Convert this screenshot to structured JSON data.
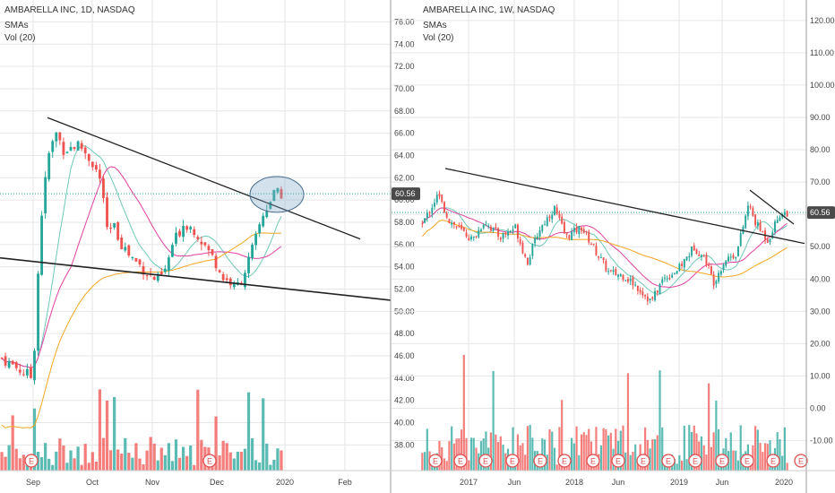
{
  "chart_data": [
    {
      "type": "candlestick",
      "title": "AMBARELLA INC, 1D, NASDAQ",
      "indicators": [
        "SMAs",
        "Vol (20)"
      ],
      "y_ticks": [
        "76.00",
        "74.00",
        "72.00",
        "70.00",
        "68.00",
        "66.00",
        "64.00",
        "62.00",
        "60.00",
        "58.00",
        "56.00",
        "54.00",
        "52.00",
        "50.00",
        "48.00",
        "46.00",
        "44.00",
        "42.00",
        "40.00",
        "38.00"
      ],
      "x_ticks": [
        "Sep",
        "Oct",
        "Nov",
        "Dec",
        "2020",
        "Feb"
      ],
      "ylim": [
        36.5,
        77
      ],
      "last_price": "60.56",
      "last_price_value": 60.56,
      "price_path": [
        [
          0,
          45.8
        ],
        [
          0.08,
          44
        ],
        [
          0.1,
          58
        ],
        [
          0.12,
          64
        ],
        [
          0.14,
          66
        ],
        [
          0.16,
          64.5
        ],
        [
          0.2,
          65
        ],
        [
          0.24,
          63
        ],
        [
          0.26,
          61
        ],
        [
          0.27,
          57
        ],
        [
          0.29,
          57.5
        ],
        [
          0.31,
          56
        ],
        [
          0.33,
          55
        ],
        [
          0.36,
          54
        ],
        [
          0.38,
          53.2
        ],
        [
          0.4,
          52.8
        ],
        [
          0.42,
          53.5
        ],
        [
          0.44,
          56
        ],
        [
          0.47,
          58
        ],
        [
          0.5,
          57.2
        ],
        [
          0.53,
          55.5
        ],
        [
          0.55,
          54.5
        ],
        [
          0.57,
          53
        ],
        [
          0.59,
          52.6
        ],
        [
          0.6,
          52
        ],
        [
          0.62,
          53
        ],
        [
          0.65,
          56
        ],
        [
          0.67,
          58.5
        ],
        [
          0.7,
          60.5
        ],
        [
          0.72,
          60.56
        ]
      ],
      "annotations": [
        "descending trendline from ~67 (Sep) to ~56.5 (Feb)",
        "lower trendline from ~55 to ~51",
        "ellipse highlight near 60.5 (mid Dec)"
      ],
      "series_colors": {
        "up": "#26a69a",
        "down": "#ef5350",
        "sma_fast": "#6fc8b8",
        "sma_mid": "#e040a0",
        "sma_slow": "#f5a623",
        "trend": "#222222"
      }
    },
    {
      "type": "candlestick",
      "title": "AMBARELLA INC, 1W, NASDAQ",
      "indicators": [
        "SMAs",
        "Vol (20)"
      ],
      "y_ticks": [
        "120.00",
        "110.00",
        "100.00",
        "90.00",
        "80.00",
        "70.00",
        "60.00",
        "50.00",
        "40.00",
        "30.00",
        "20.00",
        "10.00",
        "0.00",
        "-10.00"
      ],
      "x_ticks": [
        "2017",
        "Jun",
        "2018",
        "Jun",
        "2019",
        "Jun",
        "2020"
      ],
      "ylim": [
        -16.5,
        123
      ],
      "last_price": "60.56",
      "last_price_value": 60.56,
      "price_path": [
        [
          0,
          57
        ],
        [
          0.04,
          66
        ],
        [
          0.07,
          58
        ],
        [
          0.1,
          55
        ],
        [
          0.13,
          52
        ],
        [
          0.16,
          58
        ],
        [
          0.2,
          53
        ],
        [
          0.24,
          56
        ],
        [
          0.27,
          45
        ],
        [
          0.3,
          55
        ],
        [
          0.34,
          62
        ],
        [
          0.37,
          53
        ],
        [
          0.41,
          56
        ],
        [
          0.44,
          50
        ],
        [
          0.48,
          42
        ],
        [
          0.52,
          41
        ],
        [
          0.55,
          38
        ],
        [
          0.59,
          33
        ],
        [
          0.62,
          40
        ],
        [
          0.66,
          43
        ],
        [
          0.7,
          50
        ],
        [
          0.73,
          46
        ],
        [
          0.75,
          39
        ],
        [
          0.78,
          46
        ],
        [
          0.81,
          48
        ],
        [
          0.84,
          63
        ],
        [
          0.86,
          57
        ],
        [
          0.89,
          52
        ],
        [
          0.92,
          60
        ],
        [
          0.94,
          60.56
        ]
      ],
      "annotations": [
        "descending trendline from ~74 (late 2016) to ~51 (2020)",
        "second trendline from ~67 to ~57 (late 2019)"
      ],
      "series_colors": {
        "up": "#26a69a",
        "down": "#ef5350",
        "sma_fast": "#6fc8b8",
        "sma_mid": "#e040a0",
        "sma_slow": "#f5a623",
        "trend": "#222222"
      }
    }
  ]
}
